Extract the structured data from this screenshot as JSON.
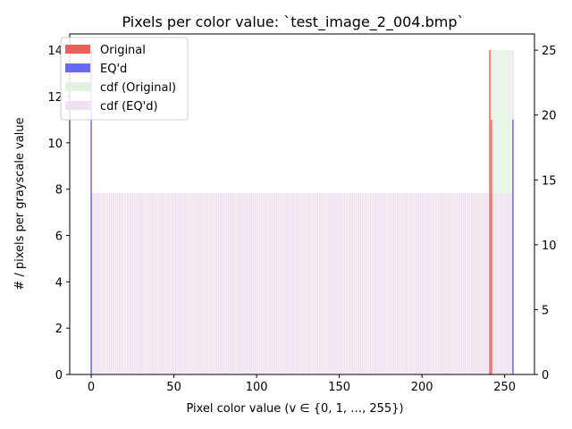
{
  "chart_data": {
    "type": "bar",
    "title": "Pixels per color value: `test_image_2_004.bmp`",
    "xlabel": "Pixel color value (v ∈ {0, 1, …, 255})",
    "ylabel": "# / pixels per grayscale value",
    "xlim": [
      -13,
      268
    ],
    "ylim_left": [
      0,
      14.7
    ],
    "ylim_right": [
      0,
      26.25
    ],
    "xticks": [
      0,
      50,
      100,
      150,
      200,
      250
    ],
    "yticks_left": [
      0,
      2,
      4,
      6,
      8,
      10,
      12,
      14
    ],
    "yticks_right": [
      0,
      5,
      10,
      15,
      20,
      25
    ],
    "legend": {
      "location": "upper-left",
      "entries": [
        {
          "label": "Original",
          "color": "#f0605a"
        },
        {
          "label": "EQ'd",
          "color": "#6868f2"
        },
        {
          "label": "cdf (Original)",
          "color": "#e3f1e3"
        },
        {
          "label": "cdf (EQ'd)",
          "color": "#efe2ef"
        }
      ]
    },
    "series": [
      {
        "name": "Original",
        "axis": "left",
        "color": "#f0605a",
        "points": [
          {
            "x": 241,
            "y": 14
          },
          {
            "x": 242,
            "y": 11
          }
        ]
      },
      {
        "name": "EQ'd",
        "axis": "left",
        "color": "#6868f2",
        "points": [
          {
            "x": 0,
            "y": 14
          },
          {
            "x": 255,
            "y": 11
          }
        ]
      },
      {
        "name": "cdf (Original)",
        "axis": "right",
        "color": "#e3f1e3",
        "description": "cumulative count: 0 below 241, 14 at 241, 25 from 242 to 255",
        "steps": [
          {
            "x_start": 241,
            "x_end": 241,
            "y": 14
          },
          {
            "x_start": 242,
            "x_end": 255,
            "y": 25
          }
        ]
      },
      {
        "name": "cdf (EQ'd)",
        "axis": "right",
        "color": "#efe2ef",
        "description": "cumulative count: 14 from 0 to 254, 25 at 255",
        "steps": [
          {
            "x_start": 0,
            "x_end": 254,
            "y": 14
          },
          {
            "x_start": 255,
            "x_end": 255,
            "y": 25
          }
        ]
      }
    ]
  }
}
